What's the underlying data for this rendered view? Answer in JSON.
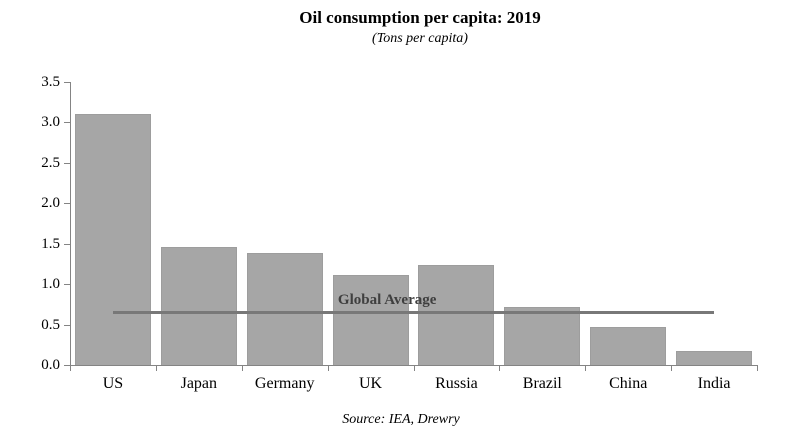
{
  "header": {
    "title": "Oil consumption per capita: 2019",
    "subtitle": "(Tons per capita)"
  },
  "footer": {
    "source": "Source: IEA, Drewry"
  },
  "chart_data": {
    "type": "bar",
    "title": "Oil consumption per capita: 2019",
    "subtitle": "(Tons per capita)",
    "categories": [
      "US",
      "Japan",
      "Germany",
      "UK",
      "Russia",
      "Brazil",
      "China",
      "India"
    ],
    "values": [
      3.1,
      1.46,
      1.39,
      1.11,
      1.24,
      0.72,
      0.47,
      0.17
    ],
    "xlabel": "",
    "ylabel": "",
    "ylim": [
      0,
      3.5
    ],
    "yticks": [
      "0.0",
      "0.5",
      "1.0",
      "1.5",
      "2.0",
      "2.5",
      "3.0",
      "3.5"
    ],
    "grid": false,
    "legend_position": "none",
    "reference_line": {
      "label": "Global Average",
      "value": 0.65,
      "span": "center of first category to center of last category"
    },
    "colors": {
      "bar_fill": "#a6a6a6",
      "bar_border": "#9d9d9d",
      "reference_line": "#787878",
      "reference_label": "#3f3f3f",
      "axis": "#848484",
      "text": "#000000",
      "background": "#ffffff"
    },
    "source": "Source: IEA, Drewry"
  }
}
